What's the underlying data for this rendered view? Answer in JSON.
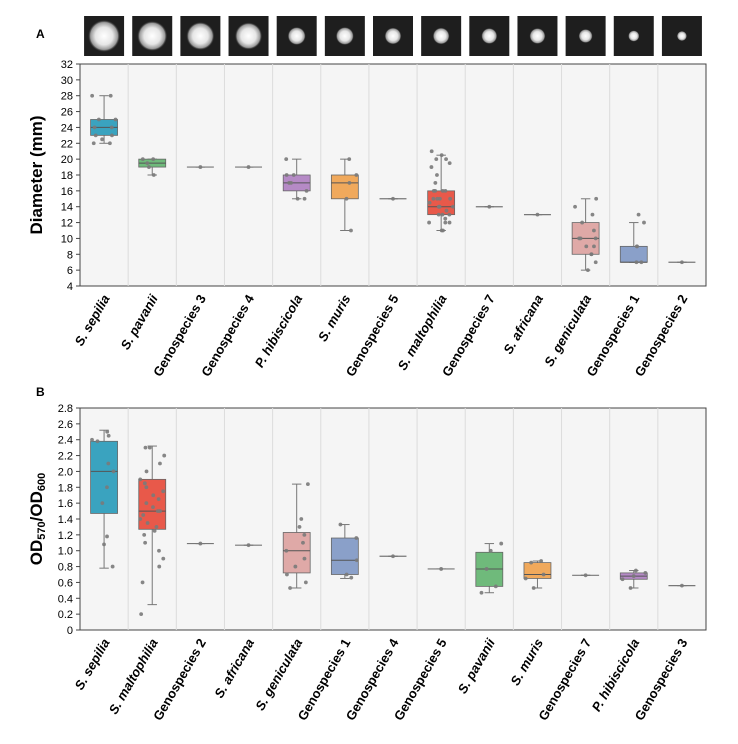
{
  "chart_data": [
    {
      "panel": "A",
      "type": "box",
      "ylabel": "Diameter (mm)",
      "ylim": [
        4,
        32
      ],
      "yticks": [
        4,
        6,
        8,
        10,
        12,
        14,
        16,
        18,
        20,
        22,
        24,
        26,
        28,
        30,
        32
      ],
      "vertical_grid": true,
      "colony_image_row": true,
      "categories": [
        {
          "label": "S. sepilia",
          "italic": true,
          "color": "#3aa3bf",
          "q1": 23,
          "median": 24,
          "q3": 25,
          "whisker_low": 22,
          "whisker_high": 28,
          "points": [
            22,
            22,
            22.5,
            23,
            23,
            24,
            24,
            25,
            25,
            28,
            28
          ]
        },
        {
          "label": "S. pavanii",
          "italic": true,
          "color": "#6fba7b",
          "q1": 19,
          "median": 19.5,
          "q3": 20,
          "whisker_low": 18,
          "whisker_high": 20,
          "points": [
            18,
            19,
            19.5,
            20,
            20
          ]
        },
        {
          "label": "Genospecies 3",
          "italic": false,
          "color": "#9e9e9e",
          "q1": 19,
          "median": 19,
          "q3": 19,
          "whisker_low": 19,
          "whisker_high": 19,
          "points": [
            19
          ]
        },
        {
          "label": "Genospecies 4",
          "italic": false,
          "color": "#9e9e9e",
          "q1": 19,
          "median": 19,
          "q3": 19,
          "whisker_low": 19,
          "whisker_high": 19,
          "points": [
            19
          ]
        },
        {
          "label": "P. hibiscicola",
          "italic": true,
          "color": "#b58ac6",
          "q1": 16,
          "median": 17,
          "q3": 18,
          "whisker_low": 15,
          "whisker_high": 20,
          "points": [
            15,
            15,
            16,
            17,
            17,
            18,
            18,
            20
          ]
        },
        {
          "label": "S. muris",
          "italic": true,
          "color": "#f0a95c",
          "q1": 15,
          "median": 17,
          "q3": 18,
          "whisker_low": 11,
          "whisker_high": 20,
          "points": [
            11,
            15,
            17,
            18,
            20
          ]
        },
        {
          "label": "Genospecies 5",
          "italic": false,
          "color": "#9e9e9e",
          "q1": 15,
          "median": 15,
          "q3": 15,
          "whisker_low": 15,
          "whisker_high": 15,
          "points": [
            15
          ]
        },
        {
          "label": "S. maltophilia",
          "italic": true,
          "color": "#e8594a",
          "q1": 13,
          "median": 14,
          "q3": 16,
          "whisker_low": 11,
          "whisker_high": 20.5,
          "points": [
            11,
            11,
            12,
            12,
            12,
            12.5,
            13,
            13,
            13,
            13.5,
            14,
            14,
            14,
            14,
            14.5,
            15,
            15,
            15,
            15,
            16,
            16,
            16,
            16,
            17,
            18,
            19,
            19.5,
            20,
            20,
            20.5,
            21
          ]
        },
        {
          "label": "Genospecies 7",
          "italic": false,
          "color": "#9e9e9e",
          "q1": 14,
          "median": 14,
          "q3": 14,
          "whisker_low": 14,
          "whisker_high": 14,
          "points": [
            14
          ]
        },
        {
          "label": "S. africana",
          "italic": true,
          "color": "#9e9e9e",
          "q1": 13,
          "median": 13,
          "q3": 13,
          "whisker_low": 13,
          "whisker_high": 13,
          "points": [
            13
          ]
        },
        {
          "label": "S. geniculata",
          "italic": true,
          "color": "#dfa9a7",
          "q1": 8,
          "median": 10,
          "q3": 12,
          "whisker_low": 6,
          "whisker_high": 15,
          "points": [
            6,
            7,
            8,
            8,
            9,
            9,
            10,
            10,
            10,
            11,
            12,
            13,
            14,
            15
          ]
        },
        {
          "label": "Genospecies 1",
          "italic": false,
          "color": "#8aa0c9",
          "q1": 7,
          "median": 7,
          "q3": 9,
          "whisker_low": 7,
          "whisker_high": 12,
          "points": [
            7,
            7,
            9,
            9,
            12,
            13
          ]
        },
        {
          "label": "Genospecies 2",
          "italic": false,
          "color": "#9e9e9e",
          "q1": 7,
          "median": 7,
          "q3": 7,
          "whisker_low": 7,
          "whisker_high": 7,
          "points": [
            7
          ]
        }
      ]
    },
    {
      "panel": "B",
      "type": "box",
      "ylabel_main": "OD",
      "ylabel_sub1": "570",
      "ylabel_sep": "/OD",
      "ylabel_sub2": "600",
      "ylim": [
        0,
        2.8
      ],
      "yticks": [
        0,
        0.2,
        0.4,
        0.6,
        0.8,
        1.0,
        1.2,
        1.4,
        1.6,
        1.8,
        2.0,
        2.2,
        2.4,
        2.6,
        2.8
      ],
      "ytick_labels": [
        "0",
        "0.2",
        "0.4",
        "0.6",
        "0.8",
        "1.0",
        "1.2",
        "1.4",
        "1.6",
        "1.8",
        "2.0",
        "2.2",
        "2.4",
        "2.6",
        "2.8"
      ],
      "vertical_grid": true,
      "categories": [
        {
          "label": "S. sepilia",
          "italic": true,
          "color": "#3aa3bf",
          "q1": 1.47,
          "median": 2.0,
          "q3": 2.38,
          "whisker_low": 0.78,
          "whisker_high": 2.52,
          "points": [
            0.8,
            1.08,
            1.18,
            1.6,
            1.8,
            2.0,
            2.1,
            2.38,
            2.4,
            2.45,
            2.5
          ]
        },
        {
          "label": "S. maltophilia",
          "italic": true,
          "color": "#e8594a",
          "q1": 1.27,
          "median": 1.5,
          "q3": 1.9,
          "whisker_low": 0.32,
          "whisker_high": 2.32,
          "points": [
            0.2,
            0.6,
            0.8,
            0.9,
            1.0,
            1.1,
            1.2,
            1.25,
            1.3,
            1.35,
            1.4,
            1.45,
            1.5,
            1.5,
            1.55,
            1.6,
            1.65,
            1.7,
            1.75,
            1.8,
            1.85,
            1.9,
            2.0,
            2.1,
            2.2,
            2.3,
            2.3
          ]
        },
        {
          "label": "Genospecies 2",
          "italic": false,
          "color": "#9e9e9e",
          "q1": 1.09,
          "median": 1.09,
          "q3": 1.09,
          "whisker_low": 1.09,
          "whisker_high": 1.09,
          "points": [
            1.09
          ]
        },
        {
          "label": "S. africana",
          "italic": true,
          "color": "#9e9e9e",
          "q1": 1.07,
          "median": 1.07,
          "q3": 1.07,
          "whisker_low": 1.07,
          "whisker_high": 1.07,
          "points": [
            1.07
          ]
        },
        {
          "label": "S. geniculata",
          "italic": true,
          "color": "#dfa9a7",
          "q1": 0.72,
          "median": 1.0,
          "q3": 1.23,
          "whisker_low": 0.53,
          "whisker_high": 1.84,
          "points": [
            0.53,
            0.6,
            0.7,
            0.8,
            0.9,
            1.0,
            1.1,
            1.2,
            1.3,
            1.4,
            1.84
          ]
        },
        {
          "label": "Genospecies 1",
          "italic": false,
          "color": "#8aa0c9",
          "q1": 0.7,
          "median": 0.88,
          "q3": 1.16,
          "whisker_low": 0.65,
          "whisker_high": 1.33,
          "points": [
            0.66,
            0.7,
            0.88,
            1.16,
            1.33
          ]
        },
        {
          "label": "Genospecies 4",
          "italic": false,
          "color": "#9e9e9e",
          "q1": 0.93,
          "median": 0.93,
          "q3": 0.93,
          "whisker_low": 0.93,
          "whisker_high": 0.93,
          "points": [
            0.93
          ]
        },
        {
          "label": "Genospecies 5",
          "italic": false,
          "color": "#9e9e9e",
          "q1": 0.77,
          "median": 0.77,
          "q3": 0.77,
          "whisker_low": 0.77,
          "whisker_high": 0.77,
          "points": [
            0.77
          ]
        },
        {
          "label": "S. pavanii",
          "italic": true,
          "color": "#6fba7b",
          "q1": 0.55,
          "median": 0.77,
          "q3": 0.98,
          "whisker_low": 0.47,
          "whisker_high": 1.09,
          "points": [
            0.47,
            0.55,
            0.77,
            1.0,
            1.09
          ]
        },
        {
          "label": "S. muris",
          "italic": true,
          "color": "#f0a95c",
          "q1": 0.65,
          "median": 0.7,
          "q3": 0.85,
          "whisker_low": 0.53,
          "whisker_high": 0.87,
          "points": [
            0.53,
            0.65,
            0.7,
            0.85,
            0.87
          ]
        },
        {
          "label": "Genospecies 7",
          "italic": false,
          "color": "#9e9e9e",
          "q1": 0.69,
          "median": 0.69,
          "q3": 0.69,
          "whisker_low": 0.69,
          "whisker_high": 0.69,
          "points": [
            0.69
          ]
        },
        {
          "label": "P. hibiscicola",
          "italic": true,
          "color": "#b58ac6",
          "q1": 0.64,
          "median": 0.68,
          "q3": 0.72,
          "whisker_low": 0.53,
          "whisker_high": 0.75,
          "points": [
            0.53,
            0.64,
            0.68,
            0.72,
            0.75
          ]
        },
        {
          "label": "Genospecies 3",
          "italic": false,
          "color": "#9e9e9e",
          "q1": 0.56,
          "median": 0.56,
          "q3": 0.56,
          "whisker_low": 0.56,
          "whisker_high": 0.56,
          "points": [
            0.56
          ]
        }
      ]
    }
  ],
  "colony_images": [
    {
      "name": "colony-image-1",
      "size": 0.8
    },
    {
      "name": "colony-image-2",
      "size": 0.75
    },
    {
      "name": "colony-image-3",
      "size": 0.7
    },
    {
      "name": "colony-image-4",
      "size": 0.68
    },
    {
      "name": "colony-image-5",
      "size": 0.45
    },
    {
      "name": "colony-image-6",
      "size": 0.45
    },
    {
      "name": "colony-image-7",
      "size": 0.42
    },
    {
      "name": "colony-image-8",
      "size": 0.42
    },
    {
      "name": "colony-image-9",
      "size": 0.4
    },
    {
      "name": "colony-image-10",
      "size": 0.4
    },
    {
      "name": "colony-image-11",
      "size": 0.35
    },
    {
      "name": "colony-image-12",
      "size": 0.28
    },
    {
      "name": "colony-image-13",
      "size": 0.25
    }
  ]
}
